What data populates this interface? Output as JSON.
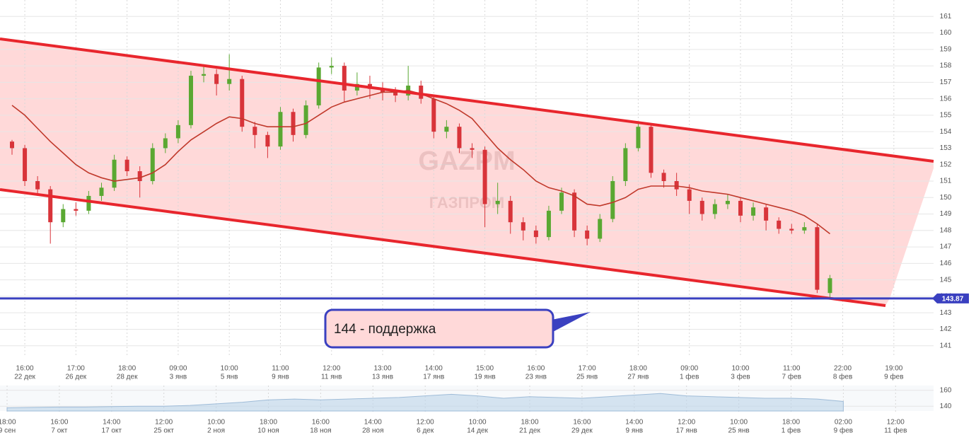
{
  "chart_data": [
    {
      "type": "candlestick",
      "watermark": [
        "GAZPM",
        "ГАЗПРОМ"
      ],
      "annotation": "144 - поддержка",
      "categories": [
        null,
        [
          "16:00",
          "22 дек"
        ],
        null,
        null,
        null,
        [
          "17:00",
          "26 дек"
        ],
        null,
        null,
        null,
        [
          "18:00",
          "28 дек"
        ],
        null,
        null,
        null,
        [
          "09:00",
          "3 янв"
        ],
        null,
        null,
        null,
        [
          "10:00",
          "5 янв"
        ],
        null,
        null,
        null,
        [
          "11:00",
          "9 янв"
        ],
        null,
        null,
        null,
        [
          "12:00",
          "11 янв"
        ],
        null,
        null,
        null,
        [
          "13:00",
          "13 янв"
        ],
        null,
        null,
        null,
        [
          "14:00",
          "17 янв"
        ],
        null,
        null,
        null,
        [
          "15:00",
          "19 янв"
        ],
        null,
        null,
        null,
        [
          "16:00",
          "23 янв"
        ],
        null,
        null,
        null,
        [
          "17:00",
          "25 янв"
        ],
        null,
        null,
        null,
        [
          "18:00",
          "27 янв"
        ],
        null,
        null,
        null,
        [
          "09:00",
          "1 фев"
        ],
        null,
        null,
        null,
        [
          "10:00",
          "3 фев"
        ],
        null,
        null,
        null,
        [
          "11:00",
          "7 фев"
        ],
        null,
        null,
        null,
        [
          "22:00",
          "8 фев"
        ],
        null,
        null,
        null,
        [
          "19:00",
          "9 фев"
        ]
      ],
      "open": [
        153.4,
        153.0,
        151.0,
        150.5,
        148.5,
        149.3,
        149.2,
        150.1,
        150.6,
        152.3,
        151.6,
        151.0,
        153.0,
        153.6,
        154.4,
        157.4,
        157.5,
        156.9,
        157.2,
        154.3,
        153.8,
        153.1,
        155.2,
        153.8,
        155.6,
        157.9,
        158.0,
        156.5,
        156.9,
        156.6,
        156.4,
        156.2,
        156.8,
        156.0,
        154.0,
        154.3,
        153.0,
        152.9,
        149.6,
        149.8,
        148.5,
        148.0,
        147.6,
        149.2,
        150.3,
        148.0,
        147.5,
        148.7,
        151.0,
        153.0,
        154.3,
        151.5,
        151.0,
        150.5,
        149.8,
        149.0,
        149.6,
        149.8,
        148.9,
        149.4,
        148.6,
        148.1,
        148.0,
        148.2,
        144.2,
        null,
        null,
        null,
        null,
        null
      ],
      "high": [
        153.5,
        153.2,
        151.3,
        150.7,
        149.6,
        149.7,
        150.4,
        150.9,
        152.6,
        152.5,
        151.9,
        153.3,
        153.9,
        154.7,
        157.7,
        158.1,
        157.8,
        158.7,
        157.4,
        154.6,
        154.0,
        155.5,
        155.4,
        155.9,
        158.2,
        158.5,
        158.2,
        157.6,
        157.4,
        157.0,
        156.7,
        158.0,
        157.1,
        156.2,
        154.7,
        154.5,
        153.3,
        153.1,
        150.9,
        150.1,
        148.8,
        148.3,
        149.5,
        150.6,
        150.5,
        148.3,
        149.0,
        151.3,
        153.3,
        154.6,
        154.5,
        151.7,
        151.5,
        150.8,
        150.0,
        149.9,
        150.2,
        150.0,
        149.7,
        149.6,
        148.8,
        148.4,
        148.5,
        148.4,
        145.3,
        null,
        null,
        null,
        null,
        null
      ],
      "low": [
        152.6,
        150.7,
        150.1,
        147.2,
        148.2,
        148.9,
        149.0,
        149.8,
        150.4,
        151.3,
        150.0,
        150.8,
        152.7,
        153.3,
        154.2,
        157.0,
        156.2,
        156.5,
        154.0,
        153.0,
        152.4,
        152.9,
        153.4,
        153.6,
        155.4,
        157.5,
        155.8,
        156.2,
        156.0,
        155.9,
        155.8,
        155.9,
        155.7,
        153.6,
        153.6,
        152.7,
        152.4,
        148.2,
        149.0,
        147.8,
        147.4,
        147.2,
        147.4,
        149.0,
        147.6,
        147.1,
        147.3,
        148.5,
        150.7,
        152.8,
        151.2,
        150.6,
        150.1,
        149.0,
        148.6,
        148.7,
        149.3,
        148.5,
        148.6,
        148.0,
        147.8,
        147.8,
        147.8,
        144.2,
        143.9,
        null,
        null,
        null,
        null,
        null
      ],
      "close": [
        153.0,
        151.0,
        150.5,
        148.5,
        149.3,
        149.2,
        150.1,
        150.6,
        152.3,
        151.6,
        151.0,
        153.0,
        153.6,
        154.4,
        157.4,
        157.5,
        156.9,
        157.2,
        154.3,
        153.8,
        153.1,
        155.2,
        153.8,
        155.6,
        157.9,
        158.0,
        156.5,
        156.9,
        156.6,
        156.4,
        156.2,
        156.8,
        156.0,
        154.0,
        154.3,
        153.0,
        152.9,
        149.6,
        149.8,
        148.5,
        148.0,
        147.6,
        149.2,
        150.3,
        148.0,
        147.5,
        148.7,
        151.0,
        153.0,
        154.3,
        151.5,
        151.0,
        150.5,
        149.8,
        149.0,
        149.6,
        149.8,
        148.9,
        149.4,
        148.6,
        148.1,
        148.0,
        148.2,
        144.4,
        145.1,
        null,
        null,
        null,
        null,
        null
      ],
      "up_color": "#5aa832",
      "down_color": "#d8343a",
      "moving_average": {
        "color": "#c0392b",
        "values": [
          155.6,
          155.0,
          154.2,
          153.4,
          152.7,
          152.0,
          151.5,
          151.2,
          151.0,
          151.1,
          151.2,
          151.5,
          152.0,
          152.8,
          153.5,
          154.0,
          154.5,
          154.9,
          154.8,
          154.5,
          154.3,
          154.3,
          154.3,
          154.5,
          155.0,
          155.5,
          155.8,
          156.0,
          156.2,
          156.4,
          156.4,
          156.5,
          156.3,
          156.0,
          155.7,
          155.3,
          154.8,
          153.9,
          153.0,
          152.3,
          151.7,
          151.0,
          150.6,
          150.4,
          150.1,
          149.6,
          149.5,
          149.7,
          150.0,
          150.5,
          150.7,
          150.7,
          150.7,
          150.6,
          150.4,
          150.3,
          150.2,
          150.0,
          149.8,
          149.6,
          149.4,
          149.2,
          148.9,
          148.4,
          147.8,
          null,
          null,
          null,
          null,
          null
        ]
      },
      "price_line": {
        "value": 143.87,
        "color": "#3a40c0"
      },
      "ylim": [
        140.3,
        162
      ],
      "yticks": [
        141,
        142,
        143,
        144,
        145,
        146,
        147,
        148,
        149,
        150,
        151,
        152,
        153,
        154,
        155,
        156,
        157,
        158,
        159,
        160,
        161
      ],
      "grid": true
    },
    {
      "type": "area",
      "categories": [
        [
          "18:00",
          "9 сен"
        ],
        null,
        [
          "16:00",
          "7 окт"
        ],
        null,
        [
          "14:00",
          "17 окт"
        ],
        null,
        [
          "12:00",
          "25 окт"
        ],
        null,
        [
          "10:00",
          "2 ноя"
        ],
        null,
        [
          "18:00",
          "10 ноя"
        ],
        null,
        [
          "16:00",
          "18 ноя"
        ],
        null,
        [
          "14:00",
          "28 ноя"
        ],
        null,
        [
          "12:00",
          "6 дек"
        ],
        null,
        [
          "10:00",
          "14 дек"
        ],
        null,
        [
          "18:00",
          "21 дек"
        ],
        null,
        [
          "16:00",
          "29 дек"
        ],
        null,
        [
          "14:00",
          "9 янв"
        ],
        null,
        [
          "12:00",
          "17 янв"
        ],
        null,
        [
          "10:00",
          "25 янв"
        ],
        null,
        [
          "18:00",
          "1 фев"
        ],
        null,
        [
          "02:00",
          "9 фев"
        ],
        null,
        [
          "12:00",
          "11 фев"
        ]
      ],
      "values": [
        138,
        138.5,
        139,
        139,
        139.5,
        140,
        140,
        141,
        143,
        145,
        148,
        149,
        148,
        149,
        150,
        151,
        153,
        155,
        153,
        150,
        152,
        151,
        150,
        152,
        154,
        156,
        153,
        152,
        151,
        150,
        150,
        149,
        146,
        null,
        null
      ],
      "color": "#bcd3ea",
      "ylim": [
        134,
        166
      ],
      "yticks": [
        140,
        160
      ]
    }
  ]
}
